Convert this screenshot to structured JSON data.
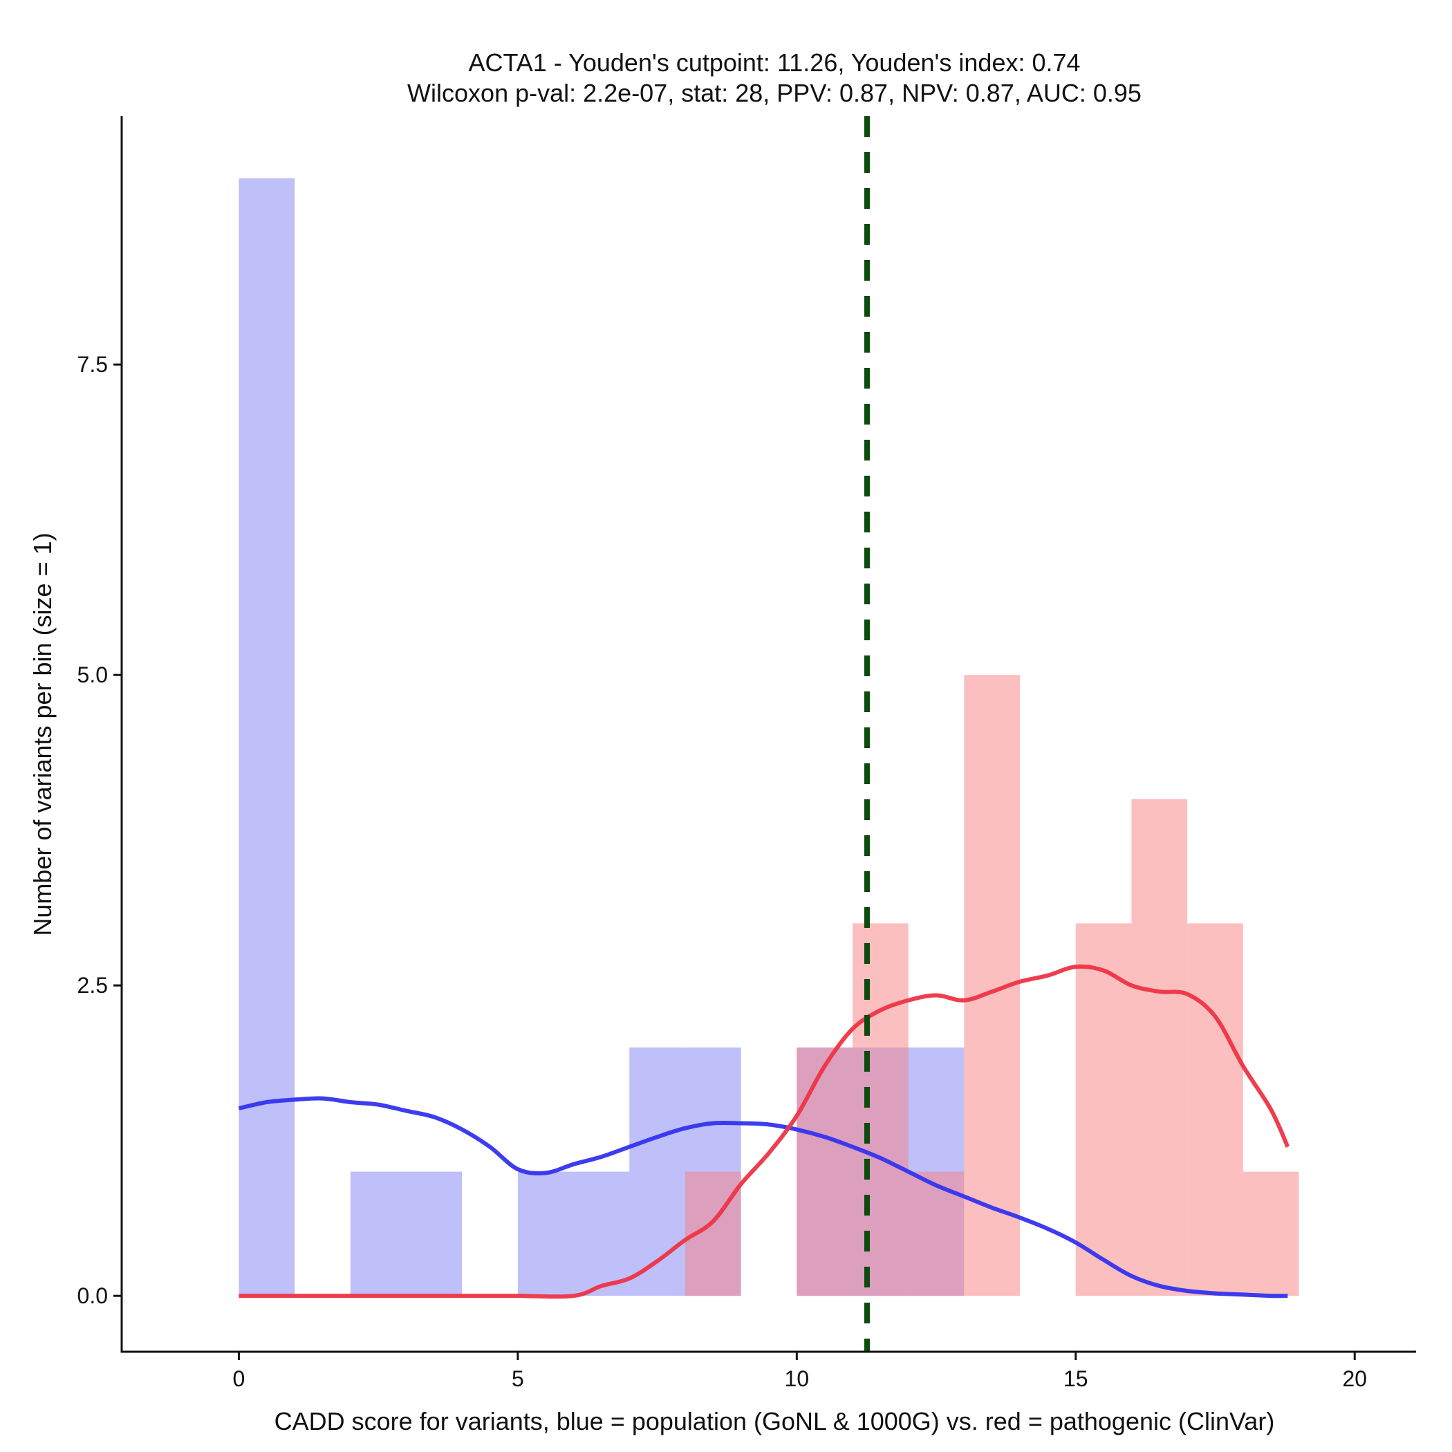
{
  "chart_data": {
    "type": "histogram",
    "title_line1": "ACTA1 - Youden's cutpoint: 11.26, Youden's index: 0.74",
    "title_line2": "Wilcoxon p-val: 2.2e-07, stat: 28, PPV: 0.87, NPV: 0.87, AUC: 0.95",
    "xlabel": "CADD score for variants, blue = population (GoNL & 1000G) vs. red = pathogenic (ClinVar)",
    "ylabel": "Number of variants per bin (size = 1)",
    "xlim": [
      -2.1,
      21.1
    ],
    "ylim": [
      -0.45,
      9.5
    ],
    "x_ticks": [
      0,
      5,
      10,
      15,
      20
    ],
    "x_tick_labels": [
      "0",
      "5",
      "10",
      "15",
      "20"
    ],
    "y_ticks": [
      0,
      2.5,
      5,
      7.5
    ],
    "y_tick_labels": [
      "0.0",
      "2.5",
      "5.0",
      "7.5"
    ],
    "cutpoint": 11.26,
    "colors": {
      "blue_bar": "#8080f5",
      "red_bar": "#f98080",
      "blue_line": "#3333ee",
      "red_line": "#ee3344",
      "cutpoint_line": "#0d4a0d",
      "axis": "#111111"
    },
    "series": [
      {
        "name": "population (GoNL & 1000G)",
        "color": "blue",
        "bins": [
          {
            "x0": 0,
            "x1": 1,
            "count": 9
          },
          {
            "x0": 2,
            "x1": 3,
            "count": 1
          },
          {
            "x0": 3,
            "x1": 4,
            "count": 1
          },
          {
            "x0": 5,
            "x1": 6,
            "count": 1
          },
          {
            "x0": 6,
            "x1": 7,
            "count": 1
          },
          {
            "x0": 7,
            "x1": 8,
            "count": 2
          },
          {
            "x0": 8,
            "x1": 9,
            "count": 2
          },
          {
            "x0": 10,
            "x1": 11,
            "count": 2
          },
          {
            "x0": 11,
            "x1": 12,
            "count": 2
          },
          {
            "x0": 12,
            "x1": 13,
            "count": 2
          }
        ],
        "density_curve": [
          [
            0,
            1.51
          ],
          [
            0.5,
            1.56
          ],
          [
            1.0,
            1.58
          ],
          [
            1.5,
            1.59
          ],
          [
            2.0,
            1.56
          ],
          [
            2.5,
            1.54
          ],
          [
            3.0,
            1.49
          ],
          [
            3.5,
            1.44
          ],
          [
            4.0,
            1.34
          ],
          [
            4.5,
            1.2
          ],
          [
            5.0,
            1.02
          ],
          [
            5.5,
            0.99
          ],
          [
            6.0,
            1.06
          ],
          [
            6.5,
            1.12
          ],
          [
            7.0,
            1.2
          ],
          [
            7.5,
            1.28
          ],
          [
            8.0,
            1.35
          ],
          [
            8.5,
            1.39
          ],
          [
            9.0,
            1.39
          ],
          [
            9.5,
            1.38
          ],
          [
            10.0,
            1.34
          ],
          [
            10.5,
            1.28
          ],
          [
            11.0,
            1.2
          ],
          [
            11.5,
            1.11
          ],
          [
            12.0,
            1.0
          ],
          [
            12.5,
            0.89
          ],
          [
            13.0,
            0.8
          ],
          [
            13.5,
            0.71
          ],
          [
            14.0,
            0.63
          ],
          [
            14.5,
            0.54
          ],
          [
            15.0,
            0.43
          ],
          [
            15.5,
            0.29
          ],
          [
            16.0,
            0.16
          ],
          [
            16.5,
            0.08
          ],
          [
            17.0,
            0.04
          ],
          [
            17.5,
            0.02
          ],
          [
            18.0,
            0.01
          ],
          [
            18.5,
            0.0
          ],
          [
            18.8,
            0.0
          ]
        ]
      },
      {
        "name": "pathogenic (ClinVar)",
        "color": "red",
        "bins": [
          {
            "x0": 8,
            "x1": 9,
            "count": 1
          },
          {
            "x0": 10,
            "x1": 11,
            "count": 2
          },
          {
            "x0": 11,
            "x1": 12,
            "count": 3
          },
          {
            "x0": 12,
            "x1": 13,
            "count": 1
          },
          {
            "x0": 13,
            "x1": 14,
            "count": 5
          },
          {
            "x0": 15,
            "x1": 16,
            "count": 3
          },
          {
            "x0": 16,
            "x1": 17,
            "count": 4
          },
          {
            "x0": 17,
            "x1": 18,
            "count": 3
          },
          {
            "x0": 18,
            "x1": 19,
            "count": 1
          }
        ],
        "density_curve": [
          [
            0,
            0.0
          ],
          [
            1,
            0.0
          ],
          [
            2,
            0.0
          ],
          [
            3,
            0.0
          ],
          [
            4,
            0.0
          ],
          [
            5,
            0.0
          ],
          [
            6.0,
            0.0
          ],
          [
            6.5,
            0.08
          ],
          [
            7.0,
            0.14
          ],
          [
            7.5,
            0.28
          ],
          [
            8.0,
            0.45
          ],
          [
            8.5,
            0.6
          ],
          [
            9.0,
            0.9
          ],
          [
            9.5,
            1.15
          ],
          [
            10.0,
            1.45
          ],
          [
            10.5,
            1.85
          ],
          [
            11.0,
            2.15
          ],
          [
            11.5,
            2.3
          ],
          [
            12.0,
            2.38
          ],
          [
            12.5,
            2.42
          ],
          [
            13.0,
            2.38
          ],
          [
            13.5,
            2.45
          ],
          [
            14.0,
            2.53
          ],
          [
            14.5,
            2.58
          ],
          [
            15.0,
            2.65
          ],
          [
            15.5,
            2.62
          ],
          [
            16.0,
            2.5
          ],
          [
            16.5,
            2.45
          ],
          [
            17.0,
            2.43
          ],
          [
            17.5,
            2.25
          ],
          [
            18.0,
            1.85
          ],
          [
            18.5,
            1.5
          ],
          [
            18.8,
            1.2
          ]
        ]
      }
    ]
  }
}
